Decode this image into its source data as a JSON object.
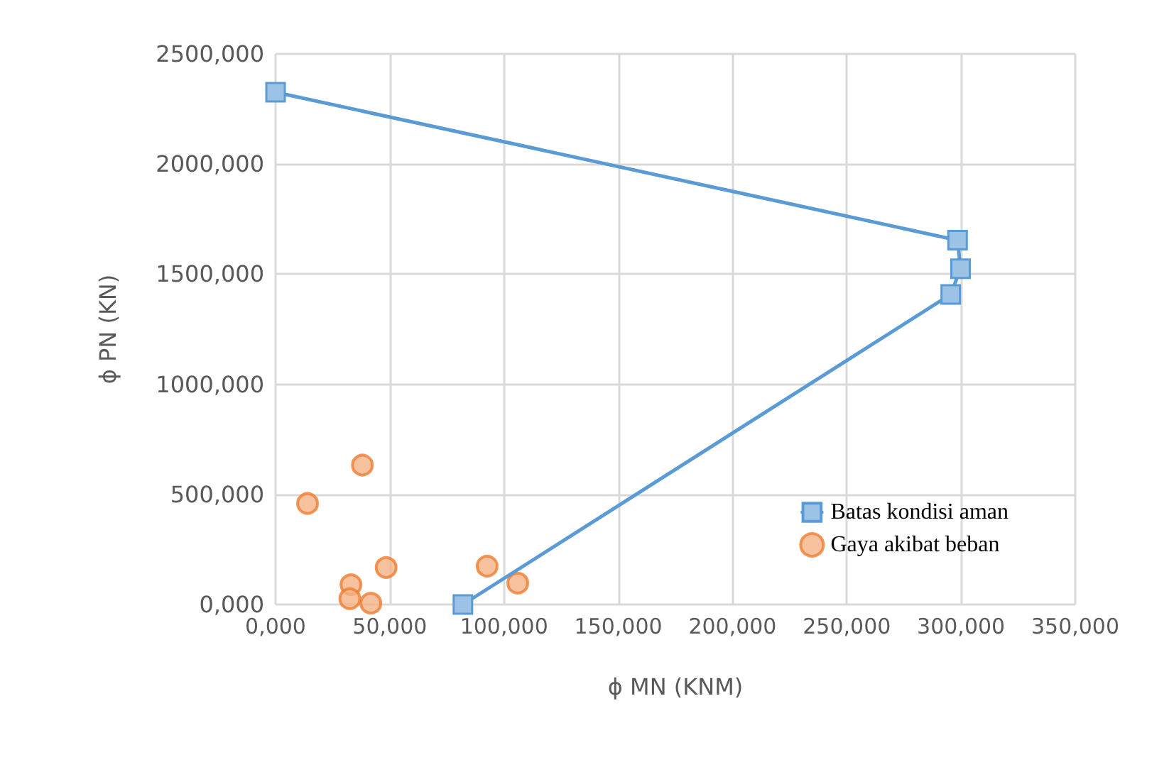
{
  "chart_data": {
    "type": "scatter",
    "xlabel": "ϕ MN (KNM)",
    "ylabel": "ϕ PN (KN)",
    "xlim": [
      0,
      350
    ],
    "ylim": [
      0,
      2500
    ],
    "xticks": [
      {
        "value": 0,
        "label": "0,000"
      },
      {
        "value": 50,
        "label": "50,000"
      },
      {
        "value": 100,
        "label": "100,000"
      },
      {
        "value": 150,
        "label": "150,000"
      },
      {
        "value": 200,
        "label": "200,000"
      },
      {
        "value": 250,
        "label": "250,000"
      },
      {
        "value": 300,
        "label": "300,000"
      },
      {
        "value": 350,
        "label": "350,000"
      }
    ],
    "yticks": [
      {
        "value": 0,
        "label": "0,000"
      },
      {
        "value": 500,
        "label": "500,000"
      },
      {
        "value": 1000,
        "label": "1000,000"
      },
      {
        "value": 1500,
        "label": "1500,000"
      },
      {
        "value": 2000,
        "label": "2000,000"
      },
      {
        "value": 2500,
        "label": "2500,000"
      }
    ],
    "grid": true,
    "legend": "right",
    "series": [
      {
        "name": "Batas kondisi aman",
        "type": "line",
        "marker": "square",
        "color": "#5b9bd5",
        "x": [
          0,
          298.5,
          299.8,
          295.5,
          82
        ],
        "values": [
          2326,
          1654,
          1525,
          1408,
          0
        ]
      },
      {
        "name": "Gaya akibat beban",
        "type": "scatter",
        "marker": "circle",
        "color": "#ed7d31",
        "x": [
          14,
          38,
          33,
          32.5,
          41.7,
          48.4,
          92.6,
          106
        ],
        "values": [
          459,
          633,
          90,
          26,
          6,
          168,
          174,
          97
        ]
      }
    ]
  }
}
